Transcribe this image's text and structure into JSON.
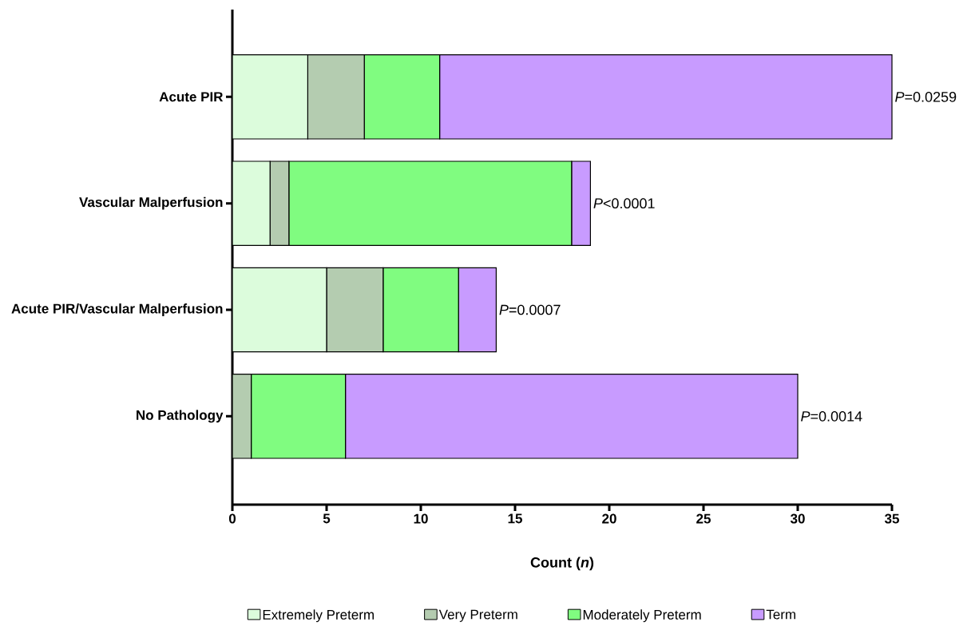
{
  "chart_data": {
    "type": "bar",
    "orientation": "horizontal",
    "stacked": true,
    "xlabel": "Count (*n*)",
    "categories": [
      "Acute PIR",
      "Vascular Malperfusion",
      "Acute PIR/Vascular Malperfusion",
      "No Pathology"
    ],
    "series": [
      {
        "name": "Extremely Preterm",
        "color": "#dcfcdc",
        "values": [
          4,
          2,
          5,
          0
        ]
      },
      {
        "name": "Very Preterm",
        "color": "#b4ccb0",
        "values": [
          3,
          1,
          3,
          1
        ]
      },
      {
        "name": "Moderately Preterm",
        "color": "#80fc80",
        "values": [
          4,
          15,
          4,
          5
        ]
      },
      {
        "name": "Term",
        "color": "#c89bff",
        "values": [
          24,
          1,
          2,
          24
        ]
      }
    ],
    "xlim": [
      0,
      35
    ],
    "xticks": [
      0,
      5,
      10,
      15,
      20,
      25,
      30,
      35
    ],
    "grid": false,
    "legend": "bottom",
    "annotations": [
      {
        "text": "*P*=0.0259",
        "x": 35,
        "y": "Acute PIR"
      },
      {
        "text": "*P*<0.0001",
        "x": 19,
        "y": "Vascular Malperfusion"
      },
      {
        "text": "*P*=0.0007",
        "x": 14,
        "y": "Acute PIR/Vascular Malperfusion"
      },
      {
        "text": "*P*=0.0014",
        "x": 30,
        "y": "No Pathology"
      }
    ]
  }
}
